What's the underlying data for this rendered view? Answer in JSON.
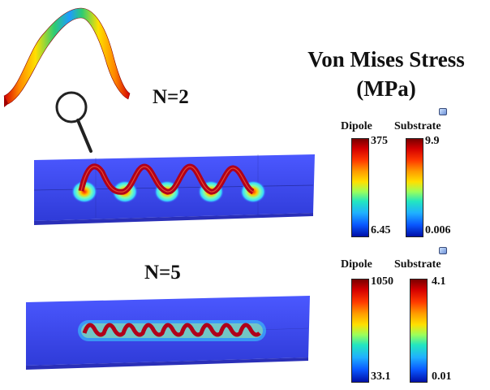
{
  "title_line1": "Von Mises Stress",
  "title_line2": "(MPa)",
  "panels": [
    {
      "label": "N=2",
      "dipole_label": "Dipole",
      "substrate_label": "Substrate",
      "dipole_max": "375",
      "dipole_min": "6.45",
      "substrate_max": "9.9",
      "substrate_min": "0.006"
    },
    {
      "label": "N=5",
      "dipole_label": "Dipole",
      "substrate_label": "Substrate",
      "dipole_max": "1050",
      "dipole_min": "33.1",
      "substrate_max": "4.1",
      "substrate_min": "0.01"
    }
  ],
  "colors": {
    "substrate": "#3b45f0",
    "substrate_edge": "#2a2fb8",
    "hot": "#c0001a",
    "glow": "#38d8ff"
  },
  "icons": [
    "sinusoid-wave-icon",
    "magnifier-icon"
  ]
}
